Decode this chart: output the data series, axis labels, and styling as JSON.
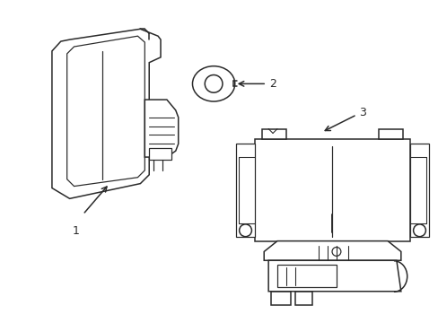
{
  "background_color": "#ffffff",
  "line_color": "#2a2a2a",
  "line_width": 1.1,
  "label_color": "#000000",
  "label_fontsize": 9,
  "figsize": [
    4.89,
    3.6
  ],
  "dpi": 100
}
